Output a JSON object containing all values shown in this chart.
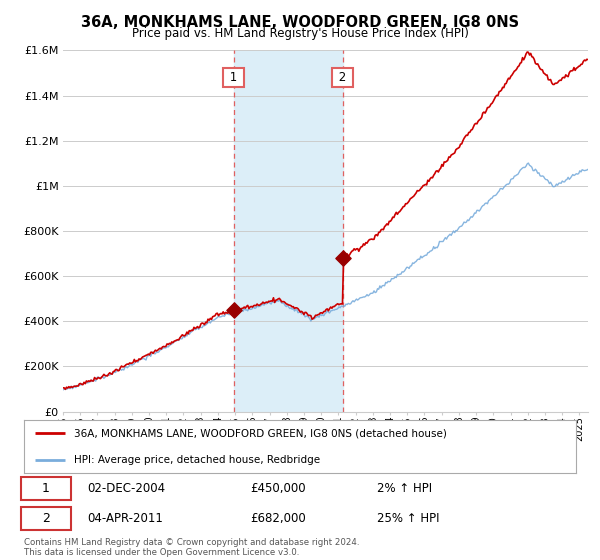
{
  "title": "36A, MONKHAMS LANE, WOODFORD GREEN, IG8 0NS",
  "subtitle": "Price paid vs. HM Land Registry's House Price Index (HPI)",
  "legend_line1": "36A, MONKHAMS LANE, WOODFORD GREEN, IG8 0NS (detached house)",
  "legend_line2": "HPI: Average price, detached house, Redbridge",
  "purchase1_date": "02-DEC-2004",
  "purchase1_price": "£450,000",
  "purchase1_hpi": "2% ↑ HPI",
  "purchase2_date": "04-APR-2011",
  "purchase2_price": "£682,000",
  "purchase2_hpi": "25% ↑ HPI",
  "hpi_line_color": "#7aaddc",
  "price_line_color": "#cc0000",
  "purchase_dot_color": "#990000",
  "shaded_region_color": "#dceef8",
  "vline_color": "#e06060",
  "background_color": "#ffffff",
  "grid_color": "#cccccc",
  "ylim": [
    0,
    1600000
  ],
  "yticks": [
    0,
    200000,
    400000,
    600000,
    800000,
    1000000,
    1200000,
    1400000,
    1600000
  ],
  "ytick_labels": [
    "£0",
    "£200K",
    "£400K",
    "£600K",
    "£800K",
    "£1M",
    "£1.2M",
    "£1.4M",
    "£1.6M"
  ],
  "purchase1_year": 2004.92,
  "purchase2_year": 2011.25,
  "p1_price_val": 450000,
  "p2_price_val": 682000,
  "footnote": "Contains HM Land Registry data © Crown copyright and database right 2024.\nThis data is licensed under the Open Government Licence v3.0."
}
